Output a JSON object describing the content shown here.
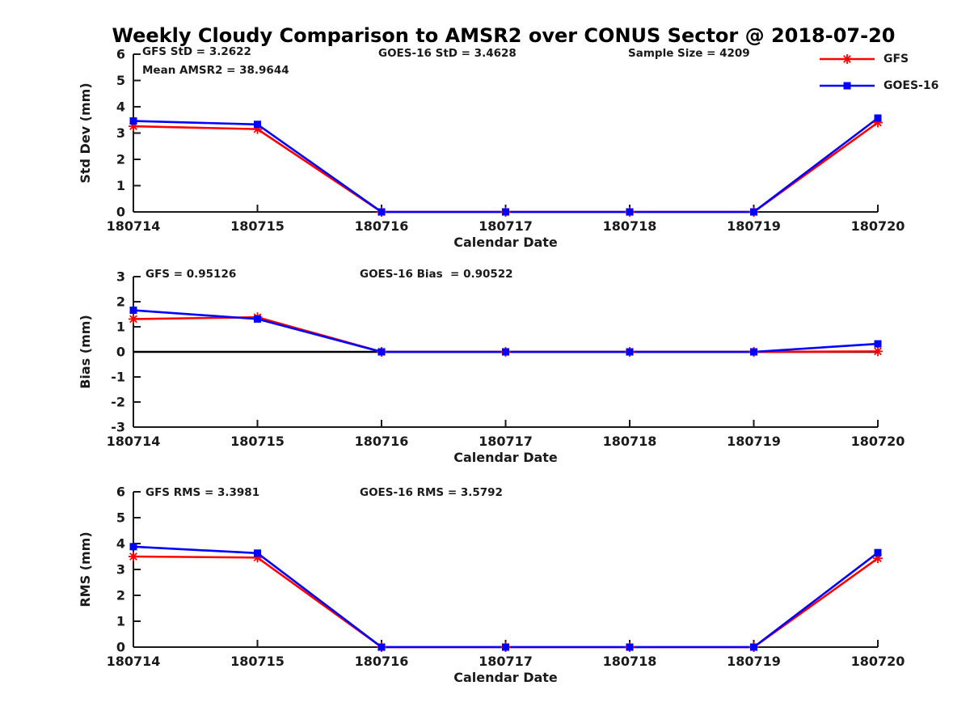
{
  "figure": {
    "title": "Weekly Cloudy Comparison to AMSR2 over CONUS Sector @ 2018-07-20",
    "background_color": "#ffffff",
    "axis_color": "#1a1a1a",
    "zero_line_color": "#000000"
  },
  "legend": {
    "position": "top-right",
    "items": [
      {
        "label": "GFS",
        "color": "#ff0000",
        "marker": "asterisk"
      },
      {
        "label": "GOES-16",
        "color": "#0000ff",
        "marker": "square"
      }
    ]
  },
  "chart_data": [
    {
      "type": "line",
      "name": "std-dev-panel",
      "xlabel": "Calendar Date",
      "ylabel": "Std Dev (mm)",
      "ylim": [
        0,
        6
      ],
      "yticks": [
        0,
        1,
        2,
        3,
        4,
        5,
        6
      ],
      "grid": false,
      "zero_line": false,
      "categories": [
        "180714",
        "180715",
        "180716",
        "180717",
        "180718",
        "180719",
        "180720"
      ],
      "series": [
        {
          "name": "GFS",
          "color": "#ff0000",
          "marker": "asterisk",
          "values": [
            3.26,
            3.15,
            0,
            0,
            0,
            0,
            3.4
          ]
        },
        {
          "name": "GOES-16",
          "color": "#0000ff",
          "marker": "square",
          "values": [
            3.46,
            3.33,
            0,
            0,
            0,
            0,
            3.57
          ]
        }
      ],
      "annotations": [
        {
          "text": "GFS StD = 3.2622"
        },
        {
          "text": "Mean AMSR2 = 38.9644"
        },
        {
          "text": "GOES-16 StD = 3.4628"
        },
        {
          "text": "Sample Size = 4209"
        }
      ]
    },
    {
      "type": "line",
      "name": "bias-panel",
      "xlabel": "Calendar Date",
      "ylabel": "Bias (mm)",
      "ylim": [
        -3,
        3
      ],
      "yticks": [
        3,
        2,
        1,
        0,
        -1,
        -2,
        -3
      ],
      "grid": false,
      "zero_line": true,
      "categories": [
        "180714",
        "180715",
        "180716",
        "180717",
        "180718",
        "180719",
        "180720"
      ],
      "series": [
        {
          "name": "GFS",
          "color": "#ff0000",
          "marker": "asterisk",
          "values": [
            1.31,
            1.38,
            0,
            0,
            0,
            0,
            0.02
          ]
        },
        {
          "name": "GOES-16",
          "color": "#0000ff",
          "marker": "square",
          "values": [
            1.66,
            1.31,
            0,
            0,
            0,
            0,
            0.32
          ]
        }
      ],
      "annotations": [
        {
          "text": "GFS = 0.95126"
        },
        {
          "text": "GOES-16 Bias  = 0.90522"
        }
      ]
    },
    {
      "type": "line",
      "name": "rms-panel",
      "xlabel": "Calendar Date",
      "ylabel": "RMS (mm)",
      "ylim": [
        0,
        6
      ],
      "yticks": [
        0,
        1,
        2,
        3,
        4,
        5,
        6
      ],
      "grid": false,
      "zero_line": false,
      "categories": [
        "180714",
        "180715",
        "180716",
        "180717",
        "180718",
        "180719",
        "180720"
      ],
      "series": [
        {
          "name": "GFS",
          "color": "#ff0000",
          "marker": "asterisk",
          "values": [
            3.5,
            3.46,
            0,
            0,
            0,
            0,
            3.43
          ]
        },
        {
          "name": "GOES-16",
          "color": "#0000ff",
          "marker": "square",
          "values": [
            3.88,
            3.63,
            0,
            0,
            0,
            0,
            3.65
          ]
        }
      ],
      "annotations": [
        {
          "text": "GFS RMS = 3.3981"
        },
        {
          "text": "GOES-16 RMS = 3.5792"
        }
      ]
    }
  ]
}
